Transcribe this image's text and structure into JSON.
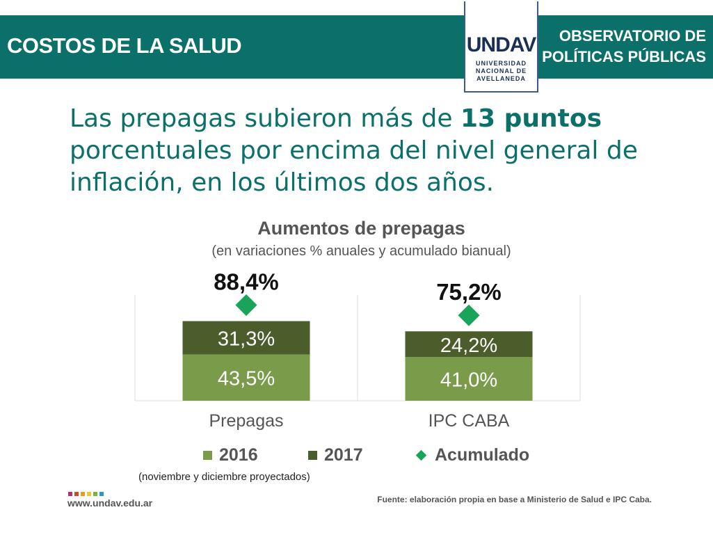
{
  "header": {
    "section_title": "COSTOS DE LA SALUD",
    "logo_mark": "UNDAV",
    "logo_lines": [
      "UNIVERSIDAD",
      "NACIONAL DE",
      "AVELLANEDA"
    ],
    "observatory_line1": "OBSERVATORIO DE",
    "observatory_line2": "POLÍTICAS PÚBLICAS"
  },
  "headline": {
    "before": "Las prepagas subieron más de ",
    "bold": "13 puntos",
    "after": " porcentuales por encima del nivel general de inflación, en los últimos dos años."
  },
  "colors": {
    "brand": "#0b7069",
    "y2016": "#7a9b4a",
    "y2017": "#4b5d2a",
    "cumulative": "#1aa35a"
  },
  "chart_data": {
    "type": "bar",
    "stacked": true,
    "title": "Aumentos de prepagas",
    "subtitle": "(en variaciones % anuales y acumulado bianual)",
    "categories": [
      "Prepagas",
      "IPC CABA"
    ],
    "series": [
      {
        "name": "2016",
        "values": [
          43.5,
          41.0
        ],
        "labels": [
          "43,5%",
          "41,0%"
        ]
      },
      {
        "name": "2017",
        "values": [
          31.3,
          24.2
        ],
        "labels": [
          "31,3%",
          "24,2%"
        ]
      }
    ],
    "cumulative": {
      "name": "Acumulado",
      "values": [
        88.4,
        75.2
      ],
      "labels": [
        "88,4%",
        "75,2%"
      ]
    },
    "legend_position": "bottom",
    "grid": false
  },
  "legend": {
    "y2016": "2016",
    "y2017": "2017",
    "cumulative": "Acumulado"
  },
  "footer": {
    "note": "(noviembre y diciembre proyectados)",
    "website": "www.undav.edu.ar",
    "source": "Fuente: elaboración propia en base a Ministerio de Salud e IPC Caba.",
    "dot_colors": [
      "#b5306c",
      "#d04a2a",
      "#e59a1e",
      "#f2c230",
      "#7fb13d",
      "#1f9ec4"
    ]
  }
}
